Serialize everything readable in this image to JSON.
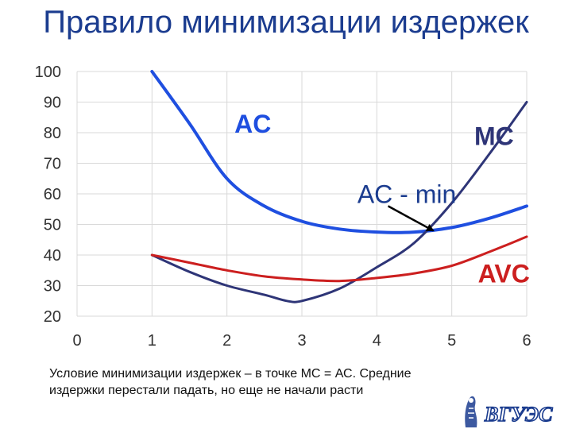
{
  "slide": {
    "title": "Правило минимизации издержек",
    "caption_line1": "Условие минимизации издержек – в  точке МС = АС. Средние",
    "caption_line2": "издержки перестали падать, но еще не начали расти",
    "logo_text": "ВГУЭС"
  },
  "chart_data": {
    "type": "line",
    "title": "",
    "xlabel": "",
    "ylabel": "",
    "xlim": [
      0,
      6
    ],
    "ylim": [
      20,
      100
    ],
    "xticks": [
      "0",
      "1",
      "2",
      "3",
      "4",
      "5",
      "6"
    ],
    "yticks": [
      "20",
      "30",
      "40",
      "50",
      "60",
      "70",
      "80",
      "90",
      "100"
    ],
    "grid": true,
    "series": [
      {
        "name": "AC",
        "color": "#1f4fe0",
        "points": [
          [
            1,
            100
          ],
          [
            1.5,
            83
          ],
          [
            2,
            65
          ],
          [
            2.5,
            56
          ],
          [
            3,
            51
          ],
          [
            3.5,
            48.5
          ],
          [
            4,
            47.5
          ],
          [
            4.5,
            47.5
          ],
          [
            5,
            49
          ],
          [
            5.5,
            52
          ],
          [
            6,
            56
          ]
        ]
      },
      {
        "name": "MC",
        "color": "#2e3577",
        "points": [
          [
            1,
            40
          ],
          [
            1.5,
            34.5
          ],
          [
            2,
            30
          ],
          [
            2.5,
            27
          ],
          [
            2.8,
            25
          ],
          [
            3,
            25
          ],
          [
            3.5,
            29
          ],
          [
            4,
            36
          ],
          [
            4.5,
            44
          ],
          [
            5,
            57
          ],
          [
            5.5,
            73
          ],
          [
            6,
            90
          ]
        ]
      },
      {
        "name": "AVC",
        "color": "#cc1f1f",
        "points": [
          [
            1,
            40
          ],
          [
            1.5,
            37.5
          ],
          [
            2,
            35
          ],
          [
            2.5,
            33
          ],
          [
            3,
            32
          ],
          [
            3.5,
            31.5
          ],
          [
            4,
            32.5
          ],
          [
            4.5,
            34
          ],
          [
            5,
            36.5
          ],
          [
            5.5,
            41
          ],
          [
            6,
            46
          ]
        ]
      }
    ],
    "labels": [
      {
        "text": "AC",
        "x": 2.1,
        "y": 80,
        "color": "#1f4fe0"
      },
      {
        "text": "MC",
        "x": 5.3,
        "y": 76,
        "color": "#2e3577"
      },
      {
        "text": "AVC",
        "x": 5.35,
        "y": 31,
        "color": "#cc1f1f"
      }
    ],
    "annotation": {
      "text": "AC - min",
      "text_x": 4.4,
      "text_y": 57,
      "arrow_from": [
        4.15,
        56
      ],
      "arrow_to": [
        4.75,
        48
      ]
    }
  }
}
